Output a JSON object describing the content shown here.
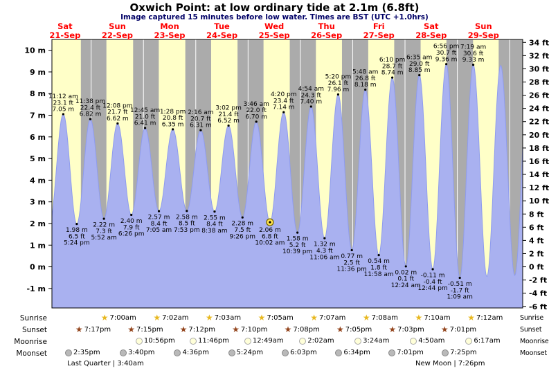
{
  "title": "Oxwich Point: at low  ordinary tide at 2.1m (6.8ft)",
  "subtitle": "Image captured 15 minutes before low water. Times are BST (UTC +1.0hrs)",
  "colors": {
    "day_band": "#ffffc8",
    "night_band": "#ababab",
    "tide_fill": "#a9b1f0",
    "tide_stroke": "#8f9cee",
    "day_label": "#ff0000",
    "subtitle_text": "#000066",
    "current_marker_fill": "#ffe34d",
    "current_marker_ring": "#7a6a00",
    "sunrise_star": "#e8b820",
    "sunset_star": "#93441c",
    "moonrise_circle": "#ffffd9",
    "moonset_circle": "#b9b9b9"
  },
  "chart_data": {
    "type": "area",
    "title": "Oxwich Point: at low  ordinary tide at 2.1m (6.8ft)",
    "subtitle": "Image captured 15 minutes before low water. Times are BST (UTC +1.0hrs)",
    "background_bands": "yellow = daylight, grey = night",
    "ylim_m": [
      -1.9,
      10.5
    ],
    "yticks_m": [
      10,
      9,
      8,
      7,
      6,
      5,
      4,
      3,
      2,
      1,
      0,
      -1
    ],
    "yticks_ft": [
      34,
      32,
      30,
      28,
      26,
      24,
      22,
      20,
      18,
      16,
      14,
      12,
      10,
      8,
      6,
      4,
      2,
      0,
      -2,
      -4,
      -6
    ],
    "x_days": [
      {
        "dow": "Sat",
        "date": "21-Sep"
      },
      {
        "dow": "Sun",
        "date": "22-Sep"
      },
      {
        "dow": "Mon",
        "date": "23-Sep"
      },
      {
        "dow": "Tue",
        "date": "24-Sep"
      },
      {
        "dow": "Wed",
        "date": "25-Sep"
      },
      {
        "dow": "Thu",
        "date": "26-Sep"
      },
      {
        "dow": "Fri",
        "date": "27-Sep"
      },
      {
        "dow": "Sat",
        "date": "28-Sep"
      },
      {
        "dow": "Sun",
        "date": "29-Sep"
      }
    ],
    "tides": [
      {
        "day": 0,
        "time": "11:12 am",
        "type": "high",
        "ft": "23.1",
        "m": "7.05"
      },
      {
        "day": 0,
        "time": "5:24 pm",
        "type": "low",
        "ft": "6.5",
        "m": "1.98"
      },
      {
        "day": 0,
        "time": "11:38 pm",
        "type": "high",
        "ft": "22.4",
        "m": "6.82"
      },
      {
        "day": 1,
        "time": "5:52 am",
        "type": "low",
        "ft": "7.3",
        "m": "2.22"
      },
      {
        "day": 1,
        "time": "12:08 pm",
        "type": "high",
        "ft": "21.7",
        "m": "6.62"
      },
      {
        "day": 1,
        "time": "6:26 pm",
        "type": "low",
        "ft": "7.9",
        "m": "2.40"
      },
      {
        "day": 2,
        "time": "12:45 am",
        "type": "high",
        "ft": "21.0",
        "m": "6.41"
      },
      {
        "day": 2,
        "time": "7:05 am",
        "type": "low",
        "ft": "8.4",
        "m": "2.57"
      },
      {
        "day": 2,
        "time": "1:28 pm",
        "type": "high",
        "ft": "20.8",
        "m": "6.35"
      },
      {
        "day": 2,
        "time": "7:53 pm",
        "type": "low",
        "ft": "8.5",
        "m": "2.58"
      },
      {
        "day": 3,
        "time": "2:16 am",
        "type": "high",
        "ft": "20.7",
        "m": "6.31"
      },
      {
        "day": 3,
        "time": "8:38 am",
        "type": "low",
        "ft": "8.4",
        "m": "2.55"
      },
      {
        "day": 3,
        "time": "3:02 pm",
        "type": "high",
        "ft": "21.4",
        "m": "6.52"
      },
      {
        "day": 3,
        "time": "9:26 pm",
        "type": "low",
        "ft": "7.5",
        "m": "2.28"
      },
      {
        "day": 4,
        "time": "3:46 am",
        "type": "high",
        "ft": "22.0",
        "m": "6.70"
      },
      {
        "day": 4,
        "time": "10:02 am",
        "type": "low",
        "ft": "6.8",
        "m": "2.06",
        "current": true
      },
      {
        "day": 4,
        "time": "4:20 pm",
        "type": "high",
        "ft": "23.4",
        "m": "7.14"
      },
      {
        "day": 4,
        "time": "10:39 pm",
        "type": "low",
        "ft": "5.2",
        "m": "1.58"
      },
      {
        "day": 5,
        "time": "4:54 am",
        "type": "high",
        "ft": "24.3",
        "m": "7.40"
      },
      {
        "day": 5,
        "time": "11:06 am",
        "type": "low",
        "ft": "4.3",
        "m": "1.32"
      },
      {
        "day": 5,
        "time": "5:20 pm",
        "type": "high",
        "ft": "26.1",
        "m": "7.96"
      },
      {
        "day": 5,
        "time": "11:36 pm",
        "type": "low",
        "ft": "2.5",
        "m": "0.77"
      },
      {
        "day": 6,
        "time": "5:48 am",
        "type": "high",
        "ft": "26.8",
        "m": "8.18"
      },
      {
        "day": 6,
        "time": "11:58 am",
        "type": "low",
        "ft": "1.8",
        "m": "0.54"
      },
      {
        "day": 6,
        "time": "6:10 pm",
        "type": "high",
        "ft": "28.7",
        "m": "8.74"
      },
      {
        "day": 7,
        "time": "12:24 am",
        "type": "low",
        "ft": "0.1",
        "m": "0.02"
      },
      {
        "day": 7,
        "time": "6:35 am",
        "type": "high",
        "ft": "29.0",
        "m": "8.85"
      },
      {
        "day": 7,
        "time": "12:44 pm",
        "type": "low",
        "ft": "-0.4",
        "m": "-0.11"
      },
      {
        "day": 7,
        "time": "6:56 pm",
        "type": "high",
        "ft": "30.7",
        "m": "9.36"
      },
      {
        "day": 8,
        "time": "1:09 am",
        "type": "low",
        "ft": "-1.7",
        "m": "-0.51"
      },
      {
        "day": 8,
        "time": "7:19 am",
        "type": "high",
        "ft": "30.6",
        "m": "9.33"
      }
    ],
    "edge_padding_estimates": [
      {
        "day": 0,
        "time": "4:50 am",
        "m": "1.90"
      },
      {
        "day": 8,
        "time": "1:35 pm",
        "m": "-0.45"
      },
      {
        "day": 8,
        "time": "7:54 pm",
        "m": "9.30"
      },
      {
        "day": 9,
        "time": "2:22 am",
        "m": "-0.40"
      },
      {
        "day": 9,
        "time": "8:40 am",
        "m": "9.20"
      }
    ]
  },
  "astro": {
    "sunrise": {
      "label": "Sunrise",
      "items": [
        {
          "day": 1,
          "time": "7:00am"
        },
        {
          "day": 2,
          "time": "7:02am"
        },
        {
          "day": 3,
          "time": "7:03am"
        },
        {
          "day": 4,
          "time": "7:05am"
        },
        {
          "day": 5,
          "time": "7:07am"
        },
        {
          "day": 6,
          "time": "7:08am"
        },
        {
          "day": 7,
          "time": "7:10am"
        },
        {
          "day": 8,
          "time": "7:12am"
        }
      ]
    },
    "sunset": {
      "label": "Sunset",
      "items": [
        {
          "day": 0,
          "time": "7:17pm"
        },
        {
          "day": 1,
          "time": "7:15pm"
        },
        {
          "day": 2,
          "time": "7:12pm"
        },
        {
          "day": 3,
          "time": "7:10pm"
        },
        {
          "day": 4,
          "time": "7:08pm"
        },
        {
          "day": 5,
          "time": "7:05pm"
        },
        {
          "day": 6,
          "time": "7:03pm"
        },
        {
          "day": 7,
          "time": "7:01pm"
        }
      ]
    },
    "moonrise": {
      "label": "Moonrise",
      "items": [
        {
          "day": 1,
          "time": "10:56pm"
        },
        {
          "day": 2,
          "time": "11:46pm"
        },
        {
          "day": 4,
          "time": "12:49am"
        },
        {
          "day": 5,
          "time": "2:02am"
        },
        {
          "day": 6,
          "time": "3:24am"
        },
        {
          "day": 7,
          "time": "4:50am"
        },
        {
          "day": 8,
          "time": "6:17am"
        }
      ]
    },
    "moonset": {
      "label": "Moonset",
      "items": [
        {
          "day": 0,
          "time": "2:35pm"
        },
        {
          "day": 1,
          "time": "3:40pm"
        },
        {
          "day": 2,
          "time": "4:36pm"
        },
        {
          "day": 3,
          "time": "5:24pm"
        },
        {
          "day": 4,
          "time": "6:03pm"
        },
        {
          "day": 5,
          "time": "6:34pm"
        },
        {
          "day": 6,
          "time": "7:01pm"
        },
        {
          "day": 7,
          "time": "7:25pm"
        }
      ]
    },
    "phases": [
      {
        "text": "Last Quarter | 3:40am"
      },
      {
        "text": "New Moon | 7:26pm"
      }
    ]
  }
}
